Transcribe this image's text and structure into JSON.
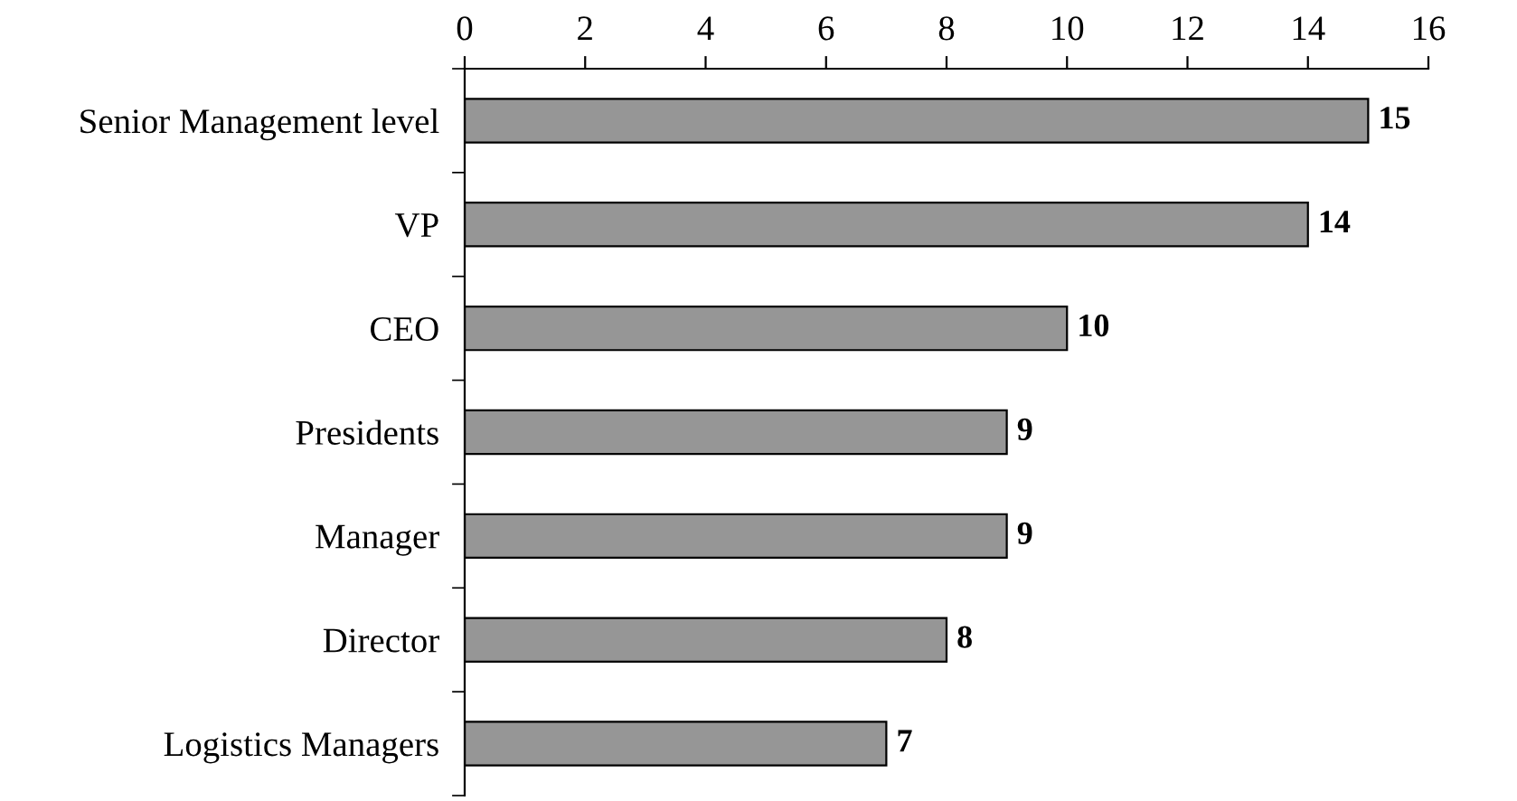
{
  "chart_data": {
    "type": "bar",
    "orientation": "horizontal",
    "categories": [
      "Senior Management level",
      "VP",
      "CEO",
      "Presidents",
      "Manager",
      "Director",
      "Logistics Managers"
    ],
    "values": [
      15,
      14,
      10,
      9,
      9,
      8,
      7
    ],
    "color": "#969696",
    "xlim": [
      0,
      16
    ],
    "xticks": [
      0,
      2,
      4,
      6,
      8,
      10,
      12,
      14,
      16
    ],
    "data_labels": true,
    "grid": false,
    "legend": false
  }
}
